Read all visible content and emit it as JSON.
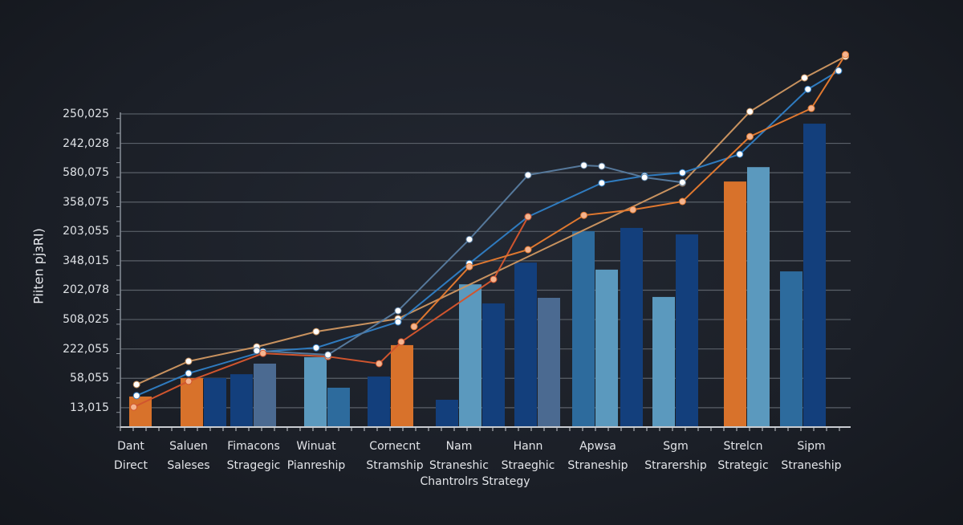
{
  "chart_data": {
    "type": "bar+line",
    "title": "",
    "xlabel": "Chantrolrs Strategy",
    "ylabel": "Piiten pjɜRI)",
    "ylim": [
      0,
      12.9
    ],
    "grid": true,
    "y_ticks": [
      {
        "label": "13,015",
        "value": 0.66
      },
      {
        "label": "58,055",
        "value": 1.66
      },
      {
        "label": "222,055",
        "value": 2.66
      },
      {
        "label": "508,025",
        "value": 3.66
      },
      {
        "label": "202,078",
        "value": 4.66
      },
      {
        "label": "348,015",
        "value": 5.66
      },
      {
        "label": "203,055",
        "value": 6.66
      },
      {
        "label": "358,075",
        "value": 7.66
      },
      {
        "label": "580,075",
        "value": 8.66
      },
      {
        "label": "242,028",
        "value": 9.66
      },
      {
        "label": "250,025",
        "value": 10.66
      }
    ],
    "categories": [
      [
        "Dant",
        "Direct"
      ],
      [
        "Saluen",
        "Saleses"
      ],
      [
        "Fimacons",
        "Stragegic"
      ],
      [
        "Winuat",
        "Pianreship"
      ],
      [
        "Cornecnt",
        "Stramship"
      ],
      [
        "Nam",
        "Straneshic"
      ],
      [
        "Hann",
        "Straeghic"
      ],
      [
        "Apwsa",
        "Straneship"
      ],
      [
        "Sgm",
        "Strarership"
      ],
      [
        "Strelcn",
        "Strategic"
      ],
      [
        "Sipm",
        "Straneship"
      ]
    ],
    "colors": {
      "orange": "#d8722b",
      "dark": "#133f7c",
      "slate": "#4b6a91",
      "light": "#5b99be",
      "mid": "#2d6b9d"
    },
    "bars": [
      [
        {
          "color": "orange",
          "value": 1.04
        }
      ],
      [
        {
          "color": "orange",
          "value": 1.67
        },
        {
          "color": "dark",
          "value": 1.67
        }
      ],
      [
        {
          "color": "dark",
          "value": 1.8
        },
        {
          "color": "slate",
          "value": 2.16
        }
      ],
      [
        {
          "color": "light",
          "value": 2.38
        },
        {
          "color": "mid",
          "value": 1.34
        }
      ],
      [
        {
          "color": "dark",
          "value": 1.72
        },
        {
          "color": "orange",
          "value": 2.79
        }
      ],
      [
        {
          "color": "dark",
          "value": 0.93
        },
        {
          "color": "light",
          "value": 4.86
        },
        {
          "color": "dark",
          "value": 4.21
        }
      ],
      [
        {
          "color": "dark",
          "value": 5.6
        },
        {
          "color": "slate",
          "value": 4.4
        }
      ],
      [
        {
          "color": "mid",
          "value": 6.67
        },
        {
          "color": "light",
          "value": 5.36
        },
        {
          "color": "dark",
          "value": 6.78
        }
      ],
      [
        {
          "color": "light",
          "value": 4.43
        },
        {
          "color": "dark",
          "value": 6.56
        }
      ],
      [
        {
          "color": "orange",
          "value": 8.36
        },
        {
          "color": "light",
          "value": 8.85
        }
      ],
      [
        {
          "color": "mid",
          "value": 5.3
        },
        {
          "color": "dark",
          "value": 10.33
        }
      ]
    ],
    "series": [
      {
        "color": "#c8925f",
        "marker": "#ffffff",
        "points": [
          [
            0.1,
            1.45
          ],
          [
            1.0,
            2.24
          ],
          [
            2.05,
            2.73
          ],
          [
            3.0,
            3.25
          ],
          [
            4.05,
            3.69
          ],
          [
            8.1,
            8.31
          ],
          [
            9.1,
            10.74
          ],
          [
            9.9,
            11.89
          ],
          [
            10.5,
            12.62
          ]
        ]
      },
      {
        "color": "#2f7bbf",
        "marker": "#ffffff",
        "points": [
          [
            0.1,
            1.07
          ],
          [
            1.0,
            1.83
          ],
          [
            2.15,
            2.57
          ],
          [
            3.0,
            2.7
          ],
          [
            4.05,
            3.58
          ],
          [
            5.15,
            5.57
          ],
          [
            6.0,
            7.16
          ],
          [
            7.05,
            8.31
          ],
          [
            7.6,
            8.55
          ],
          [
            8.1,
            8.66
          ],
          [
            8.95,
            9.29
          ],
          [
            9.95,
            11.5
          ],
          [
            10.4,
            12.13
          ]
        ]
      },
      {
        "color": "#d0552e",
        "marker": "#f4b48f",
        "points": [
          [
            0.05,
            0.68
          ],
          [
            1.0,
            1.56
          ],
          [
            2.15,
            2.51
          ],
          [
            3.15,
            2.4
          ],
          [
            3.8,
            2.16
          ],
          [
            4.1,
            2.9
          ],
          [
            5.5,
            5.03
          ],
          [
            6.0,
            7.16
          ]
        ]
      },
      {
        "color": "#56799c",
        "marker": "#ffffff",
        "points": [
          [
            2.05,
            2.6
          ],
          [
            3.15,
            2.46
          ],
          [
            4.05,
            3.96
          ],
          [
            5.15,
            6.39
          ],
          [
            6.0,
            8.58
          ],
          [
            6.8,
            8.91
          ],
          [
            7.05,
            8.88
          ],
          [
            7.6,
            8.5
          ],
          [
            8.1,
            8.33
          ]
        ]
      },
      {
        "color": "#e0782f",
        "marker": "#f4b48f",
        "points": [
          [
            4.3,
            3.42
          ],
          [
            5.15,
            5.46
          ],
          [
            6.0,
            6.04
          ],
          [
            6.8,
            7.21
          ],
          [
            7.45,
            7.4
          ],
          [
            8.1,
            7.68
          ],
          [
            9.1,
            9.89
          ],
          [
            10.0,
            10.85
          ],
          [
            10.5,
            12.68
          ]
        ]
      }
    ]
  }
}
